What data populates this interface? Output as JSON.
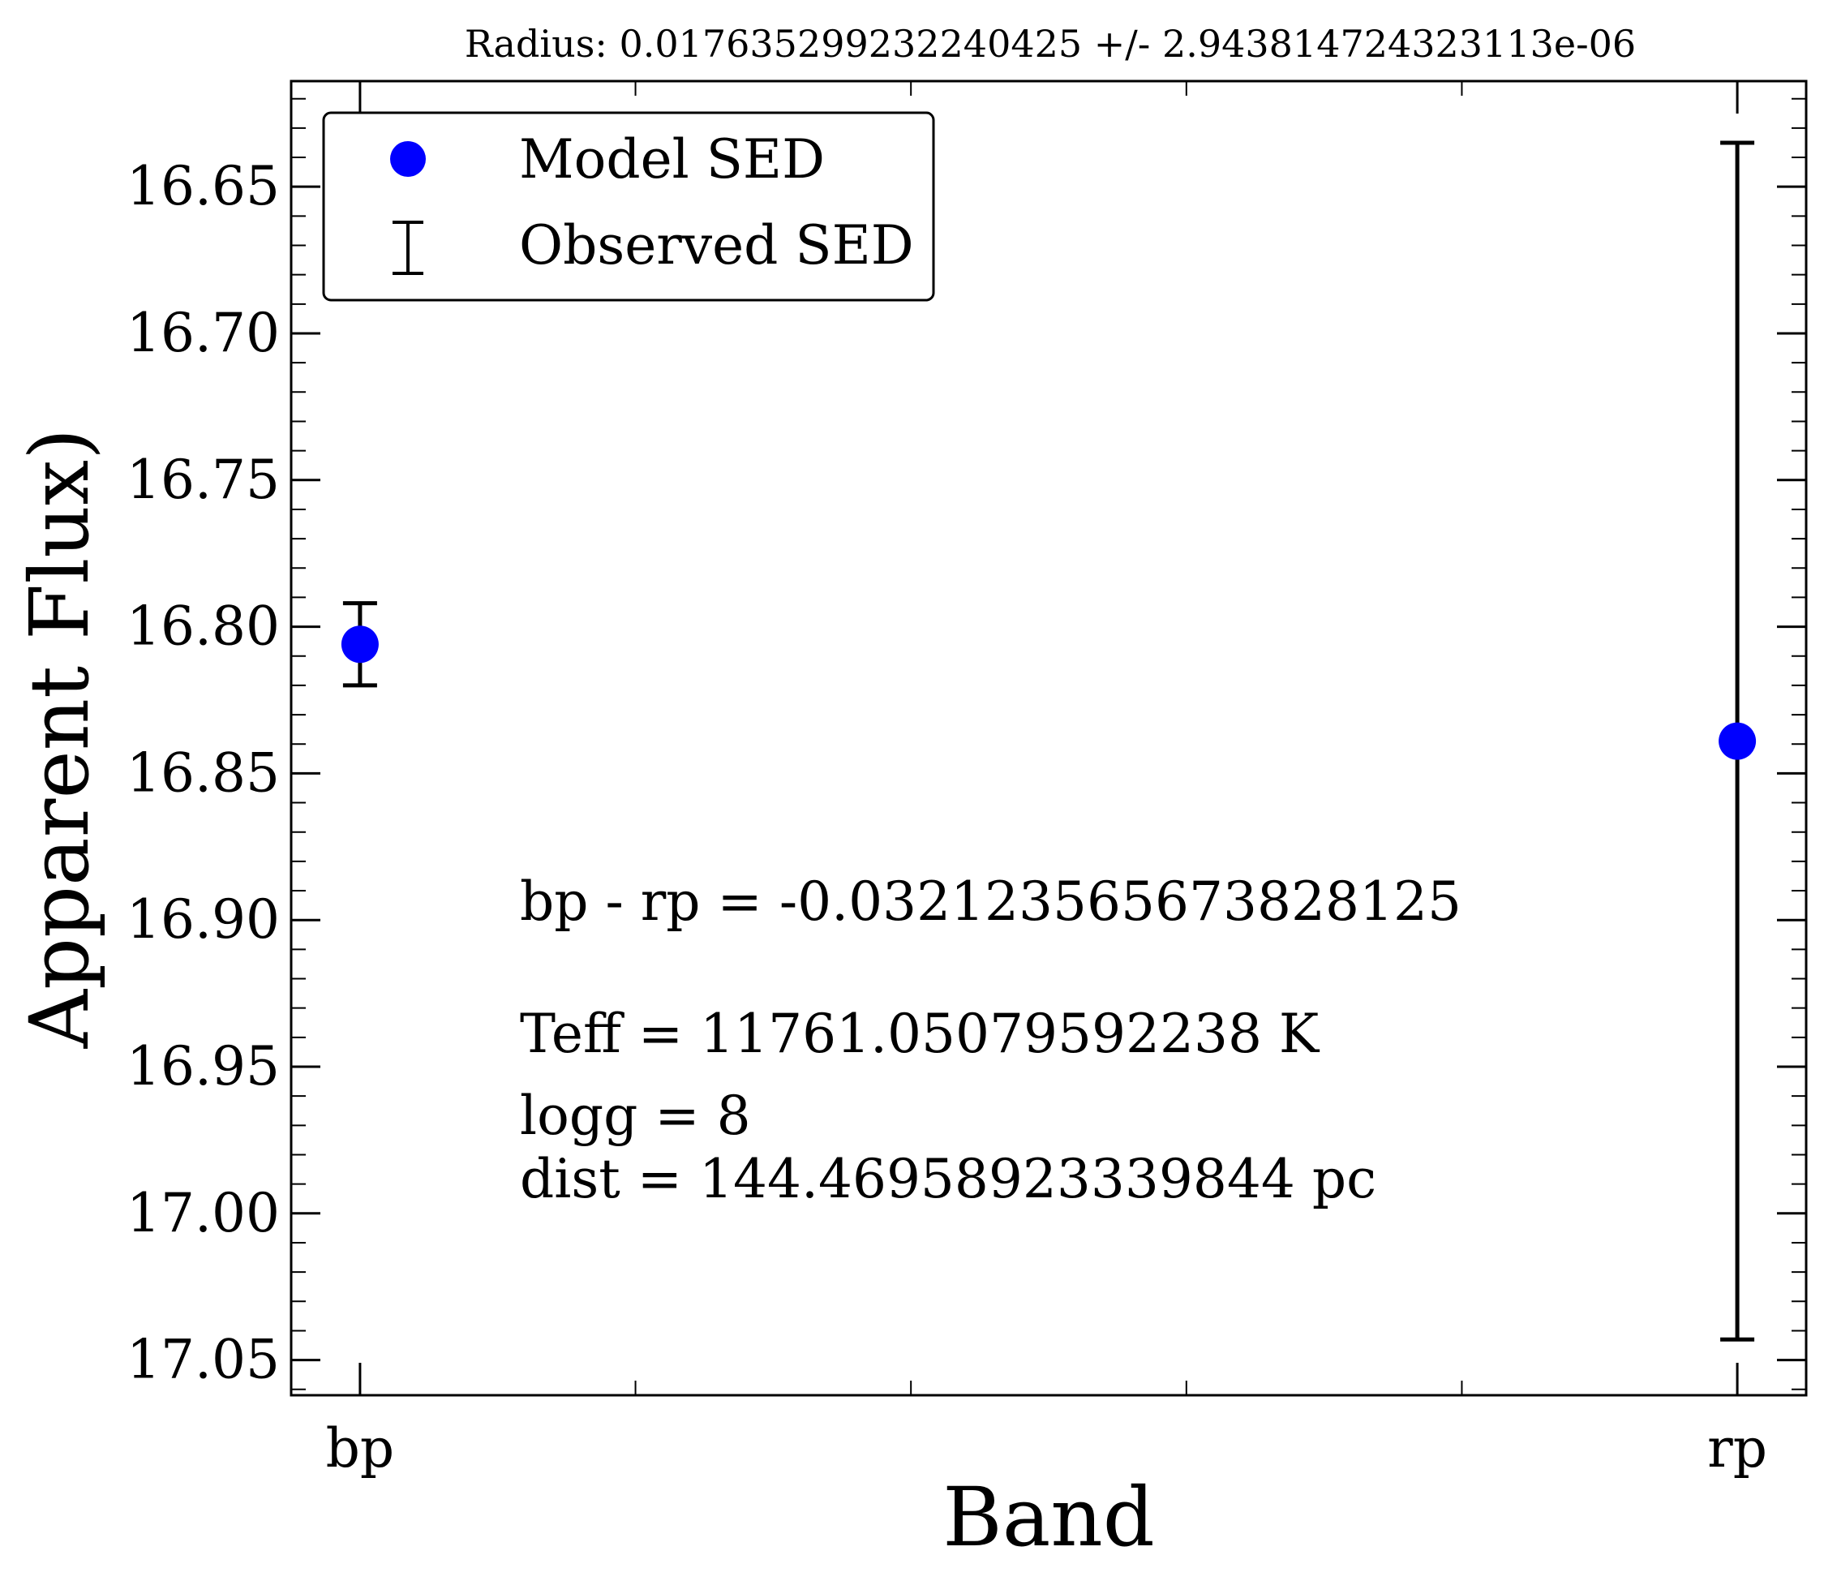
{
  "chart_data": {
    "type": "scatter",
    "title": "Radius: 0.017635299232240425 +/- 2.943814724323113e-06",
    "xlabel": "Band",
    "ylabel": "Apparent Flux)",
    "categories": [
      "bp",
      "rp"
    ],
    "x_range": [
      -0.25,
      5.25
    ],
    "ylim": [
      17.062,
      16.614
    ],
    "y_inverted": true,
    "y_ticks": [
      "16.65",
      "16.70",
      "16.75",
      "16.80",
      "16.85",
      "16.90",
      "16.95",
      "17.00",
      "17.05"
    ],
    "y_tick_values": [
      16.65,
      16.7,
      16.75,
      16.8,
      16.85,
      16.9,
      16.95,
      17.0,
      17.05
    ],
    "y_minor_step": 0.01,
    "x_minor_ticks": [
      1,
      2,
      3,
      4
    ],
    "series": [
      {
        "name": "Model SED",
        "marker": "circle",
        "color": "#0000ff",
        "x": [
          0,
          5
        ],
        "y": [
          16.806,
          16.839
        ]
      },
      {
        "name": "Observed SED",
        "marker": "errorbar",
        "color": "#000000",
        "x": [
          0,
          5
        ],
        "y": [
          16.806,
          16.839
        ],
        "yerr_low": [
          16.792,
          16.635
        ],
        "yerr_high": [
          16.82,
          17.043
        ]
      }
    ],
    "legend": {
      "position": "top-left",
      "entries": [
        "Model SED",
        "Observed SED"
      ]
    },
    "annotations": [
      "bp - rp = -0.032123565673828125",
      "Teff = 11761.05079592238 K",
      "logg = 8",
      "dist = 144.46958923339844 pc"
    ],
    "grid": false
  }
}
